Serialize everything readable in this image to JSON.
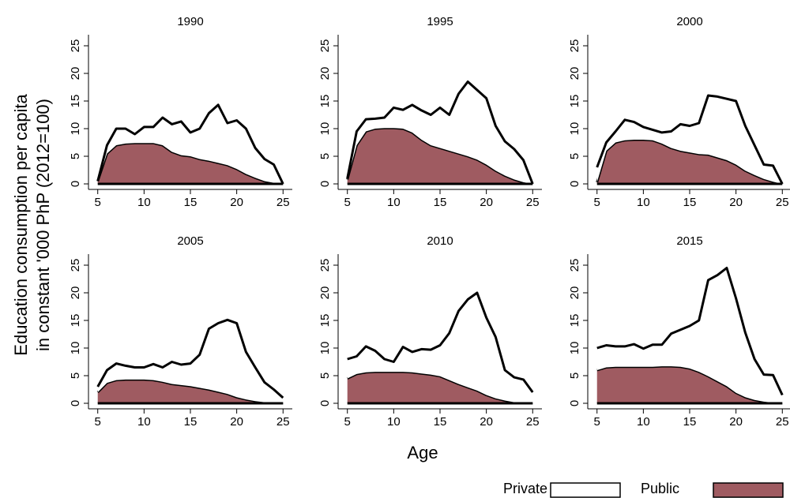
{
  "chart_data": [
    {
      "type": "stacked_area",
      "title": "1990",
      "x": [
        5,
        6,
        7,
        8,
        9,
        10,
        11,
        12,
        13,
        14,
        15,
        16,
        17,
        18,
        19,
        20,
        21,
        22,
        23,
        24,
        25
      ],
      "series": [
        {
          "name": "Public",
          "color": "#9f5b61",
          "values": [
            0.5,
            5.5,
            7,
            7.3,
            7.4,
            7.4,
            7.4,
            7,
            5.8,
            5.2,
            5,
            4.5,
            4.2,
            3.8,
            3.4,
            2.7,
            1.8,
            1.1,
            0.5,
            0.2,
            0
          ]
        },
        {
          "name": "Private",
          "color": "#ffffff",
          "values": [
            0,
            1.5,
            3,
            2.7,
            1.6,
            2.9,
            2.9,
            5,
            5,
            6.1,
            4.3,
            5.5,
            8.6,
            10.5,
            7.6,
            8.8,
            8.2,
            5.4,
            4,
            3.3,
            0
          ]
        }
      ],
      "xlim": [
        4,
        26
      ],
      "ylim": [
        -1,
        27
      ],
      "xticks": [
        5,
        10,
        15,
        20,
        25
      ],
      "yticks": [
        0,
        5,
        10,
        15,
        20,
        25
      ]
    },
    {
      "type": "stacked_area",
      "title": "1995",
      "x": [
        5,
        6,
        7,
        8,
        9,
        10,
        11,
        12,
        13,
        14,
        15,
        16,
        17,
        18,
        19,
        20,
        21,
        22,
        23,
        24,
        25
      ],
      "series": [
        {
          "name": "Public",
          "color": "#9f5b61",
          "values": [
            0.8,
            7,
            9.5,
            10,
            10.1,
            10.1,
            10,
            9.3,
            8,
            7,
            6.5,
            6,
            5.5,
            5,
            4.4,
            3.5,
            2.4,
            1.5,
            0.8,
            0.3,
            0
          ]
        },
        {
          "name": "Private",
          "color": "#ffffff",
          "values": [
            0.2,
            2.5,
            2.2,
            1.8,
            1.9,
            3.7,
            3.4,
            5,
            5.3,
            5.5,
            7.3,
            6.5,
            10.8,
            13.5,
            12.6,
            12,
            8.1,
            6.2,
            5.5,
            4,
            0
          ]
        }
      ],
      "xlim": [
        4,
        26
      ],
      "ylim": [
        -1,
        27
      ],
      "xticks": [
        5,
        10,
        15,
        20,
        25
      ],
      "yticks": [
        0,
        5,
        10,
        15,
        20,
        25
      ]
    },
    {
      "type": "stacked_area",
      "title": "2000",
      "x": [
        5,
        6,
        7,
        8,
        9,
        10,
        11,
        12,
        13,
        14,
        15,
        16,
        17,
        18,
        19,
        20,
        21,
        22,
        23,
        24,
        25
      ],
      "series": [
        {
          "name": "Public",
          "color": "#9f5b61",
          "values": [
            0.3,
            6,
            7.5,
            7.9,
            8,
            8,
            7.9,
            7.3,
            6.5,
            6,
            5.7,
            5.4,
            5.3,
            4.8,
            4.3,
            3.5,
            2.4,
            1.6,
            0.9,
            0.4,
            0
          ]
        },
        {
          "name": "Private",
          "color": "#ffffff",
          "values": [
            2.7,
            1.5,
            2,
            3.7,
            3.2,
            2.3,
            1.9,
            2,
            3,
            4.8,
            4.8,
            5.6,
            10.7,
            11,
            11.1,
            11.5,
            8.1,
            5.4,
            2.6,
            2.9,
            0
          ]
        }
      ],
      "xlim": [
        4,
        26
      ],
      "ylim": [
        -1,
        27
      ],
      "xticks": [
        5,
        10,
        15,
        20,
        25
      ],
      "yticks": [
        0,
        5,
        10,
        15,
        20,
        25
      ]
    },
    {
      "type": "stacked_area",
      "title": "2005",
      "x": [
        5,
        6,
        7,
        8,
        9,
        10,
        11,
        12,
        13,
        14,
        15,
        16,
        17,
        18,
        19,
        20,
        21,
        22,
        23,
        24,
        25
      ],
      "series": [
        {
          "name": "Public",
          "color": "#9f5b61",
          "values": [
            2,
            3.7,
            4.2,
            4.3,
            4.3,
            4.3,
            4.2,
            3.9,
            3.5,
            3.3,
            3.1,
            2.8,
            2.5,
            2.1,
            1.7,
            1.1,
            0.7,
            0.4,
            0.2,
            0.1,
            0
          ]
        },
        {
          "name": "Private",
          "color": "#ffffff",
          "values": [
            1,
            2.3,
            3,
            2.5,
            2.2,
            2.2,
            2.9,
            2.6,
            4,
            3.7,
            4.1,
            6,
            11,
            12.4,
            13.4,
            13.4,
            8.6,
            6.1,
            3.6,
            2.4,
            1
          ]
        }
      ],
      "xlim": [
        4,
        26
      ],
      "ylim": [
        -1,
        27
      ],
      "xticks": [
        5,
        10,
        15,
        20,
        25
      ],
      "yticks": [
        0,
        5,
        10,
        15,
        20,
        25
      ]
    },
    {
      "type": "stacked_area",
      "title": "2010",
      "x": [
        5,
        6,
        7,
        8,
        9,
        10,
        11,
        12,
        13,
        14,
        15,
        16,
        17,
        18,
        19,
        20,
        21,
        22,
        23,
        24,
        25
      ],
      "series": [
        {
          "name": "Public",
          "color": "#9f5b61",
          "values": [
            4.5,
            5.3,
            5.6,
            5.7,
            5.7,
            5.7,
            5.7,
            5.6,
            5.4,
            5.2,
            4.9,
            4.2,
            3.5,
            2.9,
            2.3,
            1.5,
            0.9,
            0.5,
            0.2,
            0.1,
            0
          ]
        },
        {
          "name": "Private",
          "color": "#ffffff",
          "values": [
            3.5,
            3.2,
            4.7,
            3.8,
            2.3,
            1.8,
            4.5,
            3.7,
            4.4,
            4.5,
            5.6,
            8.5,
            13.2,
            15.9,
            17.7,
            14,
            11.1,
            5.5,
            4.5,
            4.2,
            2
          ]
        }
      ],
      "xlim": [
        4,
        26
      ],
      "ylim": [
        -1,
        27
      ],
      "xticks": [
        5,
        10,
        15,
        20,
        25
      ],
      "yticks": [
        0,
        5,
        10,
        15,
        20,
        25
      ]
    },
    {
      "type": "stacked_area",
      "title": "2015",
      "x": [
        5,
        6,
        7,
        8,
        9,
        10,
        11,
        12,
        13,
        14,
        15,
        16,
        17,
        18,
        19,
        20,
        21,
        22,
        23,
        24,
        25
      ],
      "series": [
        {
          "name": "Public",
          "color": "#9f5b61",
          "values": [
            6,
            6.5,
            6.6,
            6.6,
            6.6,
            6.6,
            6.6,
            6.7,
            6.7,
            6.6,
            6.3,
            5.7,
            4.9,
            4,
            3.1,
            1.9,
            1.1,
            0.6,
            0.3,
            0.1,
            0
          ]
        },
        {
          "name": "Private",
          "color": "#ffffff",
          "values": [
            4,
            4,
            3.7,
            3.7,
            4.1,
            3.3,
            4,
            3.9,
            5.9,
            6.7,
            7.7,
            9.3,
            17.4,
            19.2,
            21.4,
            17.1,
            11.7,
            7.4,
            4.9,
            5,
            1.5
          ]
        }
      ],
      "xlim": [
        4,
        26
      ],
      "ylim": [
        -1,
        27
      ],
      "xticks": [
        5,
        10,
        15,
        20,
        25
      ],
      "yticks": [
        0,
        5,
        10,
        15,
        20,
        25
      ]
    }
  ],
  "y_label": [
    "Education consumption per capita",
    "in constant '000 PhP (2012=100)"
  ],
  "x_label": "Age"
}
